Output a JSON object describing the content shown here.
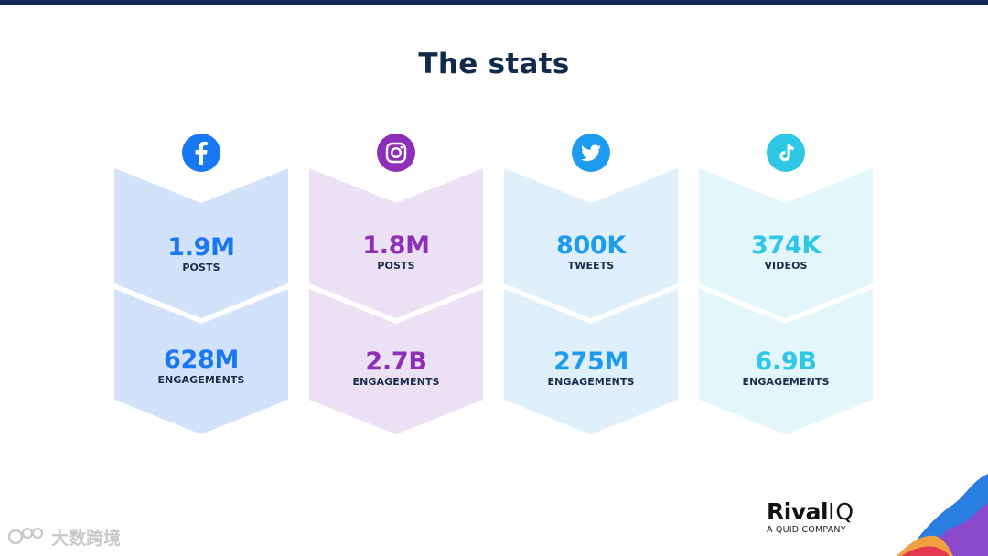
{
  "slide": {
    "title": "The stats"
  },
  "columns": [
    {
      "platform": "facebook",
      "icon": "facebook-icon",
      "accent": "#1877f2",
      "bg": "#d3e2fb",
      "stat1": {
        "value": "1.9M",
        "label": "POSTS"
      },
      "stat2": {
        "value": "628M",
        "label": "ENGAGEMENTS"
      }
    },
    {
      "platform": "instagram",
      "icon": "instagram-icon",
      "accent": "#8e2fb8",
      "bg": "#ece0f5",
      "stat1": {
        "value": "1.8M",
        "label": "POSTS"
      },
      "stat2": {
        "value": "2.7B",
        "label": "ENGAGEMENTS"
      }
    },
    {
      "platform": "twitter",
      "icon": "twitter-icon",
      "accent": "#1d9bf0",
      "bg": "#dff0fc",
      "stat1": {
        "value": "800K",
        "label": "TWEETS"
      },
      "stat2": {
        "value": "275M",
        "label": "ENGAGEMENTS"
      }
    },
    {
      "platform": "tiktok",
      "icon": "tiktok-icon",
      "accent": "#2ec8e6",
      "bg": "#e2f6fc",
      "stat1": {
        "value": "374K",
        "label": "VIDEOS"
      },
      "stat2": {
        "value": "6.9B",
        "label": "ENGAGEMENTS"
      }
    }
  ],
  "branding": {
    "logo_word": "Rival",
    "logo_iq": "IQ",
    "tagline": "A QUID COMPANY"
  },
  "watermark": {
    "text": "大数跨境"
  },
  "colors": {
    "title": "#0f2a4a",
    "top_bar": "#14285a",
    "label": "#1b2d4a"
  }
}
